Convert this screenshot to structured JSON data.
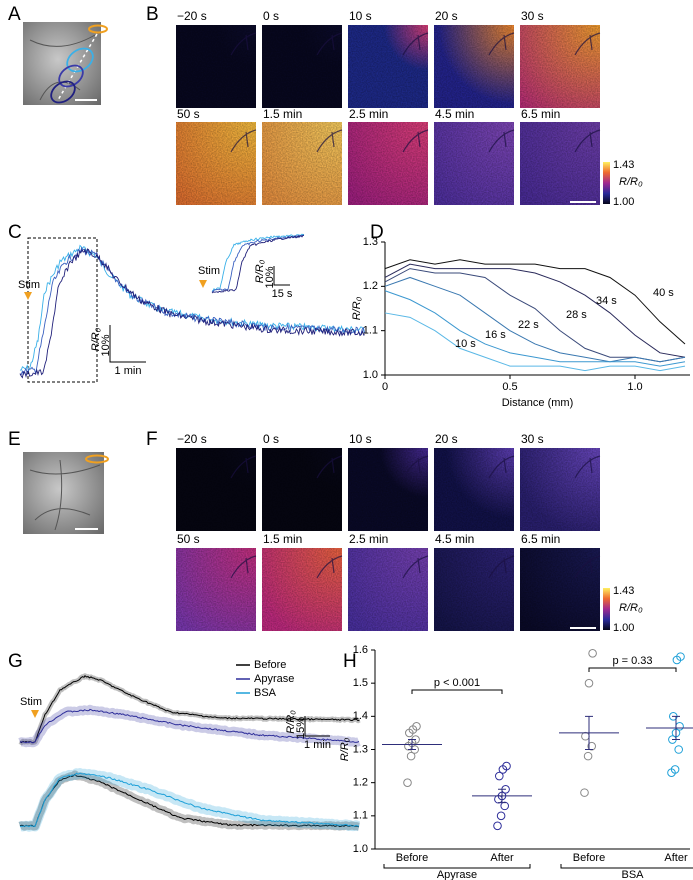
{
  "panels": {
    "A": {
      "label": "A"
    },
    "B": {
      "label": "B",
      "frames": [
        "−20 s",
        "0 s",
        "10 s",
        "20 s",
        "30 s",
        "50 s",
        "1.5 min",
        "2.5 min",
        "4.5 min",
        "6.5 min"
      ],
      "colorbar": {
        "max": "1.43",
        "min": "1.00",
        "label": "R/R₀"
      }
    },
    "C": {
      "label": "C",
      "stim": "Stim",
      "scale_y_label": "R/R₀",
      "scale_y": "10%",
      "scale_x": "1 min",
      "inset": {
        "stim": "Stim",
        "scale_y_label": "R/R₀",
        "scale_y": "10%",
        "scale_x": "15 s"
      }
    },
    "D": {
      "label": "D"
    },
    "E": {
      "label": "E"
    },
    "F": {
      "label": "F",
      "frames": [
        "−20 s",
        "0 s",
        "10 s",
        "20 s",
        "30 s",
        "50 s",
        "1.5 min",
        "2.5 min",
        "4.5 min",
        "6.5 min"
      ],
      "colorbar": {
        "max": "1.43",
        "min": "1.00",
        "label": "R/R₀"
      }
    },
    "G": {
      "label": "G",
      "stim": "Stim",
      "legend": [
        {
          "name": "Before",
          "color": "#000000"
        },
        {
          "name": "Apyrase",
          "color": "#2e2e9a"
        },
        {
          "name": "BSA",
          "color": "#1ea0d8"
        }
      ],
      "scale_y_label": "R/R₀",
      "scale_y": "15%",
      "scale_x": "1 min"
    },
    "H": {
      "label": "H"
    }
  },
  "chart_data": [
    {
      "type": "line",
      "x_label": "Distance (mm)",
      "y_label": "R/R₀",
      "x": [
        0,
        0.1,
        0.2,
        0.3,
        0.4,
        0.5,
        0.6,
        0.7,
        0.8,
        0.9,
        1.0,
        1.1,
        1.2
      ],
      "xlim": [
        0,
        1.22
      ],
      "xticks": [
        0,
        0.5,
        {
          "value": 1,
          "label": "1.0"
        }
      ],
      "ylim": [
        1,
        1.3
      ],
      "yticks": [
        {
          "value": 1,
          "label": "1.0"
        },
        1.1,
        1.2,
        1.3
      ],
      "series": [
        {
          "name": "40 s",
          "color": "#111111",
          "values": [
            1.24,
            1.26,
            1.25,
            1.26,
            1.25,
            1.25,
            1.25,
            1.24,
            1.24,
            1.22,
            1.18,
            1.12,
            1.07
          ]
        },
        {
          "name": "34 s",
          "color": "#2a2a5a",
          "values": [
            1.22,
            1.25,
            1.24,
            1.24,
            1.24,
            1.24,
            1.23,
            1.21,
            1.18,
            1.14,
            1.09,
            1.05,
            1.04
          ]
        },
        {
          "name": "28 s",
          "color": "#3a4a7a",
          "values": [
            1.21,
            1.24,
            1.23,
            1.23,
            1.22,
            1.18,
            1.15,
            1.1,
            1.06,
            1.04,
            1.04,
            1.03,
            1.04
          ]
        },
        {
          "name": "22 s",
          "color": "#3a78b0",
          "values": [
            1.2,
            1.22,
            1.2,
            1.18,
            1.14,
            1.1,
            1.07,
            1.05,
            1.04,
            1.03,
            1.04,
            1.03,
            1.04
          ]
        },
        {
          "name": "16 s",
          "color": "#3c98d0",
          "values": [
            1.19,
            1.17,
            1.14,
            1.1,
            1.07,
            1.05,
            1.04,
            1.03,
            1.03,
            1.03,
            1.03,
            1.02,
            1.03
          ]
        },
        {
          "name": "10 s",
          "color": "#5ab8e6",
          "values": [
            1.14,
            1.13,
            1.1,
            1.06,
            1.04,
            1.02,
            1.02,
            1.02,
            1.01,
            1.02,
            1.02,
            1.01,
            1.02
          ]
        }
      ]
    },
    {
      "type": "dot",
      "y_label": "R/R₀",
      "ylim": [
        1,
        1.6
      ],
      "yticks": [
        {
          "value": 1,
          "label": "1.0"
        },
        1.1,
        1.2,
        1.3,
        1.4,
        1.5,
        1.6
      ],
      "groups": [
        {
          "label": "Apyrase",
          "p_label": "p < 0.001",
          "conditions": [
            {
              "label": "Before",
              "color": "#888888",
              "values": [
                1.2,
                1.28,
                1.3,
                1.31,
                1.32,
                1.33,
                1.35,
                1.36,
                1.37
              ],
              "mean": 1.315,
              "sem": 0.015
            },
            {
              "label": "After",
              "color": "#2e2e9a",
              "values": [
                1.07,
                1.1,
                1.13,
                1.15,
                1.16,
                1.18,
                1.22,
                1.24,
                1.25
              ],
              "mean": 1.16,
              "sem": 0.02
            }
          ]
        },
        {
          "label": "BSA",
          "p_label": "p = 0.33",
          "conditions": [
            {
              "label": "Before",
              "color": "#888888",
              "values": [
                1.17,
                1.28,
                1.31,
                1.34,
                1.5,
                1.59
              ],
              "mean": 1.35,
              "sem": 0.05
            },
            {
              "label": "After",
              "color": "#1ea0d8",
              "values": [
                1.23,
                1.24,
                1.3,
                1.33,
                1.35,
                1.37,
                1.4,
                1.57,
                1.58
              ],
              "mean": 1.365,
              "sem": 0.035
            }
          ]
        }
      ]
    }
  ]
}
